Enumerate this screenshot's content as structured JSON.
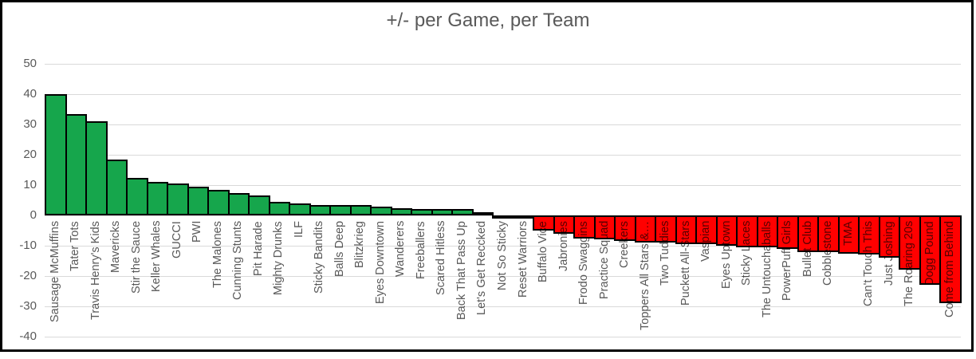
{
  "chart_data": {
    "type": "bar",
    "title": "+/- per Game, per Team",
    "xlabel": "",
    "ylabel": "",
    "ylim": [
      -40,
      50
    ],
    "yticks": [
      50,
      40,
      30,
      20,
      10,
      0,
      -10,
      -20,
      -30,
      -40
    ],
    "grid": true,
    "legend": false,
    "categories": [
      "Sausage McMuffins",
      "Tater Tots",
      "Travis Henry's Kids",
      "Mavericks",
      "Stir the Sauce",
      "Keller Whales",
      "GUCCI",
      "PWI",
      "The Malones",
      "Cunning Stunts",
      "Pit Harade",
      "Mighty Drunks",
      "ILF",
      "Sticky Bandits",
      "Balls Deep",
      "Blitzkrieg",
      "Eyes Downtown",
      "Wanderers",
      "Freeballers",
      "Scared Hitless",
      "Back That Pass Up",
      "Let's Get Reccked",
      "Not So Sticky",
      "Reset Warriors",
      "Buffalo Vice",
      "Jabronies",
      "Frodo Swaggins",
      "Practice Squad",
      "Creekers",
      "Toppers All Stars &…",
      "Two Tuddies",
      "Puckett All-Stars",
      "Vaspian",
      "Eyes Uptown",
      "Sticky Laces",
      "The Untouchaballs",
      "PowerPuff Girls",
      "Bullet Club",
      "Cobblestone",
      "TMA",
      "Can't Touch This",
      "Just Joshing",
      "The Roaring 20s",
      "Dogg Pound",
      "Come from Behind"
    ],
    "values": [
      40,
      33.5,
      31,
      18.5,
      12.5,
      11,
      10.5,
      9.5,
      8.5,
      7.5,
      6.5,
      4.5,
      4,
      3.5,
      3.5,
      3.5,
      3,
      2.5,
      2,
      2,
      2,
      1,
      -0.5,
      -1,
      -5,
      -6,
      -7.5,
      -8,
      -8.5,
      -9,
      -9,
      -9.5,
      -9.5,
      -10,
      -10.5,
      -10.5,
      -11,
      -12,
      -12,
      -12.5,
      -13,
      -14,
      -18,
      -23,
      -29
    ],
    "colors": {
      "positive_bar": "#16a64c",
      "negative_bar": "#ff0000",
      "bar_border": "#000000",
      "gridline": "#d9d9d9",
      "text": "#595959"
    }
  }
}
